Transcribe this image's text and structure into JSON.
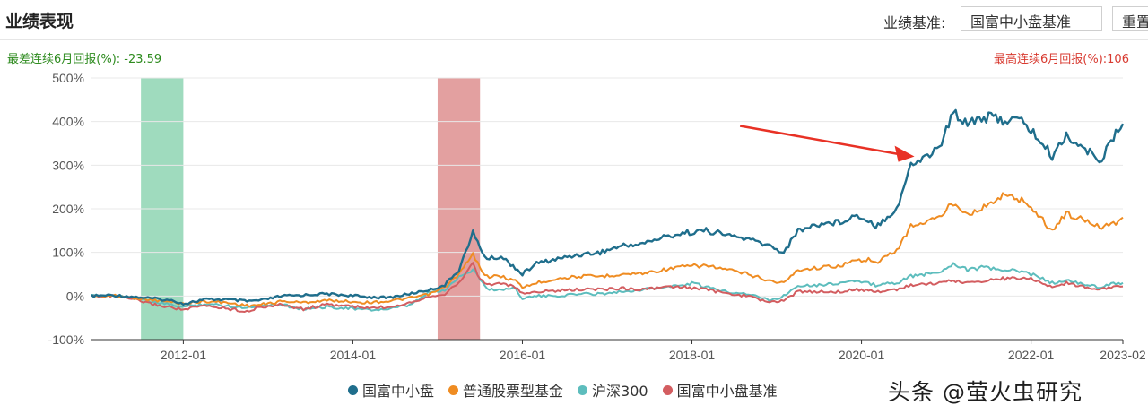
{
  "header": {
    "title": "业绩表现",
    "benchmark_label": "业绩基准:",
    "benchmark_value": "国富中小盘基准",
    "reset_label": "重置"
  },
  "stats": {
    "worst_label": "最差连续6月回报(%):",
    "worst_value": "-23.59",
    "best_label": "最高连续6月回报(%):",
    "best_value": "106"
  },
  "watermark": "头条 @萤火虫研究",
  "colors": {
    "guofu": "#1f6e8c",
    "stock_fund": "#ef8c22",
    "hs300": "#5dbdbd",
    "benchmark": "#d35d60",
    "green_band": "#7fcfa8",
    "red_band": "#d98080",
    "arrow": "#e83125"
  },
  "chart_data": {
    "type": "line",
    "xlabel": "",
    "ylabel": "",
    "ylim": [
      -100,
      500
    ],
    "yticks": [
      -100,
      0,
      100,
      200,
      300,
      400,
      500
    ],
    "ytick_labels": [
      "-100%",
      "0%",
      "100%",
      "200%",
      "300%",
      "400%",
      "500%"
    ],
    "xlim": [
      "2010-12",
      "2023-02"
    ],
    "xticks": [
      "2012-01",
      "2014-01",
      "2016-01",
      "2018-01",
      "2020-01",
      "2022-01",
      "2023-02"
    ],
    "grid": true,
    "legend_position": "bottom",
    "highlight_bands": [
      {
        "start": "2011-07",
        "end": "2012-01",
        "color": "green"
      },
      {
        "start": "2015-01",
        "end": "2015-07",
        "color": "red"
      }
    ],
    "arrow_annotation": {
      "from": [
        "2018-04",
        390
      ],
      "to": [
        "2020-09",
        320
      ]
    },
    "series": [
      {
        "name": "国富中小盘",
        "color_key": "guofu",
        "points": [
          [
            "2010-12",
            0
          ],
          [
            "2011-03",
            2
          ],
          [
            "2011-06",
            -2
          ],
          [
            "2011-09",
            -6
          ],
          [
            "2011-12",
            -12
          ],
          [
            "2012-01",
            -18
          ],
          [
            "2012-04",
            -8
          ],
          [
            "2012-07",
            -8
          ],
          [
            "2012-10",
            -12
          ],
          [
            "2012-12",
            -10
          ],
          [
            "2013-03",
            0
          ],
          [
            "2013-06",
            2
          ],
          [
            "2013-09",
            5
          ],
          [
            "2013-12",
            2
          ],
          [
            "2014-03",
            -2
          ],
          [
            "2014-06",
            -4
          ],
          [
            "2014-09",
            5
          ],
          [
            "2014-12",
            15
          ],
          [
            "2015-02",
            25
          ],
          [
            "2015-04",
            60
          ],
          [
            "2015-06",
            145
          ],
          [
            "2015-07",
            110
          ],
          [
            "2015-08",
            85
          ],
          [
            "2015-10",
            90
          ],
          [
            "2015-12",
            65
          ],
          [
            "2016-01",
            50
          ],
          [
            "2016-03",
            75
          ],
          [
            "2016-06",
            85
          ],
          [
            "2016-09",
            95
          ],
          [
            "2016-12",
            100
          ],
          [
            "2017-03",
            115
          ],
          [
            "2017-06",
            120
          ],
          [
            "2017-09",
            135
          ],
          [
            "2017-12",
            145
          ],
          [
            "2018-03",
            150
          ],
          [
            "2018-06",
            140
          ],
          [
            "2018-09",
            130
          ],
          [
            "2018-12",
            115
          ],
          [
            "2019-02",
            100
          ],
          [
            "2019-04",
            150
          ],
          [
            "2019-07",
            165
          ],
          [
            "2019-10",
            170
          ],
          [
            "2019-12",
            185
          ],
          [
            "2020-02",
            175
          ],
          [
            "2020-03",
            160
          ],
          [
            "2020-06",
            200
          ],
          [
            "2020-08",
            300
          ],
          [
            "2020-10",
            320
          ],
          [
            "2020-12",
            340
          ],
          [
            "2021-02",
            420
          ],
          [
            "2021-04",
            400
          ],
          [
            "2021-06",
            410
          ],
          [
            "2021-09",
            405
          ],
          [
            "2021-12",
            400
          ],
          [
            "2022-02",
            360
          ],
          [
            "2022-04",
            320
          ],
          [
            "2022-06",
            370
          ],
          [
            "2022-09",
            330
          ],
          [
            "2022-11",
            315
          ],
          [
            "2023-01",
            370
          ],
          [
            "2023-02",
            395
          ]
        ]
      },
      {
        "name": "普通股票型基金",
        "color_key": "stock_fund",
        "points": [
          [
            "2010-12",
            0
          ],
          [
            "2011-03",
            1
          ],
          [
            "2011-06",
            -4
          ],
          [
            "2011-09",
            -10
          ],
          [
            "2011-12",
            -15
          ],
          [
            "2012-01",
            -18
          ],
          [
            "2012-04",
            -12
          ],
          [
            "2012-07",
            -15
          ],
          [
            "2012-10",
            -22
          ],
          [
            "2012-12",
            -20
          ],
          [
            "2013-03",
            -12
          ],
          [
            "2013-06",
            -15
          ],
          [
            "2013-09",
            -10
          ],
          [
            "2013-12",
            -12
          ],
          [
            "2014-03",
            -15
          ],
          [
            "2014-06",
            -12
          ],
          [
            "2014-09",
            -5
          ],
          [
            "2014-12",
            5
          ],
          [
            "2015-02",
            20
          ],
          [
            "2015-04",
            50
          ],
          [
            "2015-06",
            95
          ],
          [
            "2015-07",
            65
          ],
          [
            "2015-08",
            45
          ],
          [
            "2015-10",
            45
          ],
          [
            "2015-12",
            35
          ],
          [
            "2016-01",
            20
          ],
          [
            "2016-03",
            30
          ],
          [
            "2016-06",
            40
          ],
          [
            "2016-09",
            45
          ],
          [
            "2016-12",
            45
          ],
          [
            "2017-03",
            50
          ],
          [
            "2017-06",
            52
          ],
          [
            "2017-09",
            60
          ],
          [
            "2017-12",
            68
          ],
          [
            "2018-03",
            70
          ],
          [
            "2018-06",
            60
          ],
          [
            "2018-09",
            50
          ],
          [
            "2018-12",
            35
          ],
          [
            "2019-02",
            30
          ],
          [
            "2019-04",
            60
          ],
          [
            "2019-07",
            65
          ],
          [
            "2019-10",
            70
          ],
          [
            "2019-12",
            80
          ],
          [
            "2020-02",
            85
          ],
          [
            "2020-03",
            75
          ],
          [
            "2020-06",
            105
          ],
          [
            "2020-08",
            160
          ],
          [
            "2020-10",
            170
          ],
          [
            "2020-12",
            180
          ],
          [
            "2021-02",
            215
          ],
          [
            "2021-04",
            190
          ],
          [
            "2021-06",
            200
          ],
          [
            "2021-09",
            230
          ],
          [
            "2021-12",
            220
          ],
          [
            "2022-02",
            185
          ],
          [
            "2022-04",
            150
          ],
          [
            "2022-06",
            190
          ],
          [
            "2022-09",
            170
          ],
          [
            "2022-11",
            160
          ],
          [
            "2023-01",
            170
          ],
          [
            "2023-02",
            180
          ]
        ]
      },
      {
        "name": "沪深300",
        "color_key": "hs300",
        "points": [
          [
            "2010-12",
            0
          ],
          [
            "2011-03",
            2
          ],
          [
            "2011-06",
            -5
          ],
          [
            "2011-09",
            -15
          ],
          [
            "2011-12",
            -22
          ],
          [
            "2012-01",
            -25
          ],
          [
            "2012-04",
            -18
          ],
          [
            "2012-07",
            -22
          ],
          [
            "2012-10",
            -27
          ],
          [
            "2012-12",
            -20
          ],
          [
            "2013-03",
            -20
          ],
          [
            "2013-06",
            -30
          ],
          [
            "2013-09",
            -25
          ],
          [
            "2013-12",
            -27
          ],
          [
            "2014-03",
            -32
          ],
          [
            "2014-06",
            -30
          ],
          [
            "2014-09",
            -22
          ],
          [
            "2014-12",
            10
          ],
          [
            "2015-02",
            12
          ],
          [
            "2015-04",
            45
          ],
          [
            "2015-06",
            60
          ],
          [
            "2015-07",
            40
          ],
          [
            "2015-08",
            15
          ],
          [
            "2015-10",
            15
          ],
          [
            "2015-12",
            18
          ],
          [
            "2016-01",
            -5
          ],
          [
            "2016-03",
            0
          ],
          [
            "2016-06",
            0
          ],
          [
            "2016-09",
            5
          ],
          [
            "2016-12",
            5
          ],
          [
            "2017-03",
            10
          ],
          [
            "2017-06",
            15
          ],
          [
            "2017-09",
            20
          ],
          [
            "2017-12",
            25
          ],
          [
            "2018-01",
            30
          ],
          [
            "2018-03",
            20
          ],
          [
            "2018-06",
            10
          ],
          [
            "2018-09",
            5
          ],
          [
            "2018-12",
            -10
          ],
          [
            "2019-02",
            0
          ],
          [
            "2019-04",
            25
          ],
          [
            "2019-07",
            25
          ],
          [
            "2019-10",
            30
          ],
          [
            "2019-12",
            35
          ],
          [
            "2020-03",
            25
          ],
          [
            "2020-06",
            30
          ],
          [
            "2020-08",
            45
          ],
          [
            "2020-12",
            55
          ],
          [
            "2021-02",
            75
          ],
          [
            "2021-04",
            60
          ],
          [
            "2021-06",
            65
          ],
          [
            "2021-09",
            60
          ],
          [
            "2021-12",
            55
          ],
          [
            "2022-02",
            45
          ],
          [
            "2022-04",
            30
          ],
          [
            "2022-06",
            35
          ],
          [
            "2022-09",
            25
          ],
          [
            "2022-11",
            20
          ],
          [
            "2023-01",
            30
          ],
          [
            "2023-02",
            30
          ]
        ]
      },
      {
        "name": "国富中小盘基准",
        "color_key": "benchmark",
        "points": [
          [
            "2010-12",
            0
          ],
          [
            "2011-03",
            0
          ],
          [
            "2011-06",
            -8
          ],
          [
            "2011-09",
            -20
          ],
          [
            "2011-12",
            -28
          ],
          [
            "2012-01",
            -32
          ],
          [
            "2012-04",
            -22
          ],
          [
            "2012-07",
            -28
          ],
          [
            "2012-10",
            -35
          ],
          [
            "2012-12",
            -25
          ],
          [
            "2013-03",
            -20
          ],
          [
            "2013-06",
            -30
          ],
          [
            "2013-09",
            -20
          ],
          [
            "2013-12",
            -22
          ],
          [
            "2014-03",
            -28
          ],
          [
            "2014-06",
            -25
          ],
          [
            "2014-09",
            -15
          ],
          [
            "2014-12",
            0
          ],
          [
            "2015-02",
            5
          ],
          [
            "2015-04",
            30
          ],
          [
            "2015-06",
            75
          ],
          [
            "2015-07",
            40
          ],
          [
            "2015-08",
            25
          ],
          [
            "2015-10",
            30
          ],
          [
            "2015-12",
            20
          ],
          [
            "2016-01",
            5
          ],
          [
            "2016-03",
            10
          ],
          [
            "2016-06",
            12
          ],
          [
            "2016-09",
            15
          ],
          [
            "2016-12",
            15
          ],
          [
            "2017-03",
            18
          ],
          [
            "2017-06",
            15
          ],
          [
            "2017-09",
            20
          ],
          [
            "2017-12",
            20
          ],
          [
            "2018-03",
            15
          ],
          [
            "2018-06",
            5
          ],
          [
            "2018-09",
            0
          ],
          [
            "2018-12",
            -15
          ],
          [
            "2019-02",
            -10
          ],
          [
            "2019-04",
            10
          ],
          [
            "2019-07",
            10
          ],
          [
            "2019-10",
            10
          ],
          [
            "2019-12",
            15
          ],
          [
            "2020-03",
            10
          ],
          [
            "2020-06",
            15
          ],
          [
            "2020-08",
            25
          ],
          [
            "2020-12",
            30
          ],
          [
            "2021-02",
            35
          ],
          [
            "2021-04",
            30
          ],
          [
            "2021-06",
            35
          ],
          [
            "2021-09",
            40
          ],
          [
            "2021-12",
            42
          ],
          [
            "2022-02",
            35
          ],
          [
            "2022-04",
            20
          ],
          [
            "2022-06",
            30
          ],
          [
            "2022-09",
            20
          ],
          [
            "2022-11",
            15
          ],
          [
            "2023-01",
            22
          ],
          [
            "2023-02",
            22
          ]
        ]
      }
    ]
  }
}
